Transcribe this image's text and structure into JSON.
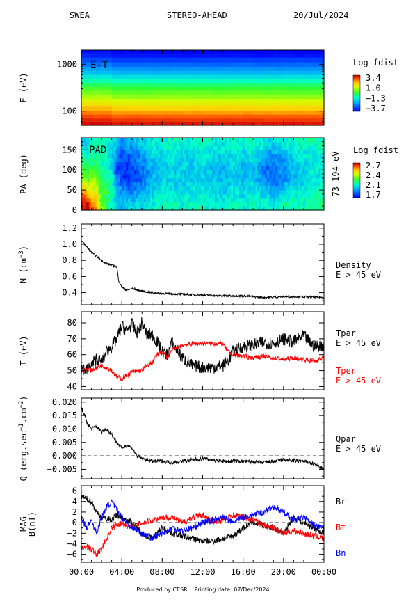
{
  "header": {
    "instrument": "SWEA",
    "spacecraft": "STEREO-AHEAD",
    "date": "20/Jul/2024"
  },
  "footer": {
    "produced_by": "Produced by CESR.",
    "printing_date": "Printing date: 07/Dec/2024"
  },
  "colors": {
    "black": "#000000",
    "red": "#ff0000",
    "blue": "#0000ff"
  },
  "chart_data": [
    {
      "id": "et",
      "type": "heatmap",
      "panel_label": "E-T",
      "ylabel": "E (eV)",
      "yscale": "log",
      "ylim": [
        50,
        2000
      ],
      "yticks": [
        "1000",
        "100"
      ],
      "colorbar": {
        "title": "Log fdist",
        "ticks": [
          "3.4",
          "1.0",
          "−1.3",
          "−3.7"
        ],
        "range": [
          -3.7,
          3.4
        ]
      },
      "energy_levels": [
        55,
        65,
        78,
        95,
        115,
        140,
        170,
        205,
        250,
        305,
        370,
        450,
        550,
        670,
        820,
        1000,
        1250,
        1600,
        1900
      ],
      "log_fdist_profile": [
        3.2,
        2.9,
        2.6,
        2.2,
        1.8,
        1.4,
        1.0,
        0.6,
        0.3,
        0.0,
        -0.4,
        -0.9,
        -1.4,
        -1.9,
        -2.3,
        -2.7,
        -3.1,
        -3.5,
        -3.7
      ]
    },
    {
      "id": "pad",
      "type": "heatmap",
      "panel_label": "PAD",
      "ylabel": "PA (deg)",
      "right_label": "73-194 eV",
      "ylim": [
        0,
        180
      ],
      "yticks": [
        "150",
        "100",
        "50",
        "0"
      ],
      "colorbar": {
        "title": "Log fdist",
        "ticks": [
          "2.7",
          "2.4",
          "2.1",
          "1.7"
        ],
        "range": [
          1.7,
          2.7
        ]
      },
      "time_hours": [
        0,
        0.5,
        1,
        1.5,
        2,
        2.5,
        3,
        3.5,
        4,
        5,
        6,
        7,
        8,
        9,
        10,
        11,
        12,
        13,
        14,
        15,
        16,
        17,
        18,
        19,
        20,
        21,
        22,
        23,
        24
      ],
      "pitch_angle_bins": [
        15,
        45,
        75,
        105,
        135,
        165
      ],
      "log_fdist": [
        [
          2.7,
          2.5,
          2.3,
          2.2,
          2.1,
          2.0
        ],
        [
          2.7,
          2.5,
          2.3,
          2.2,
          2.1,
          2.0
        ],
        [
          2.6,
          2.4,
          2.3,
          2.2,
          2.1,
          2.1
        ],
        [
          2.5,
          2.4,
          2.3,
          2.2,
          2.1,
          2.1
        ],
        [
          2.3,
          2.2,
          2.2,
          2.1,
          2.1,
          2.1
        ],
        [
          2.2,
          2.2,
          2.1,
          2.1,
          2.1,
          2.1
        ],
        [
          2.1,
          2.1,
          2.1,
          2.0,
          2.0,
          2.0
        ],
        [
          2.0,
          2.0,
          1.9,
          1.8,
          1.9,
          2.0
        ],
        [
          2.0,
          1.9,
          1.8,
          1.75,
          1.8,
          1.9
        ],
        [
          2.0,
          1.9,
          1.8,
          1.8,
          1.85,
          1.95
        ],
        [
          2.0,
          1.95,
          1.85,
          1.85,
          1.9,
          2.0
        ],
        [
          2.05,
          2.0,
          1.95,
          1.95,
          2.0,
          2.05
        ],
        [
          2.1,
          2.05,
          2.0,
          2.0,
          2.0,
          2.05
        ],
        [
          2.1,
          2.05,
          2.0,
          2.0,
          2.05,
          2.1
        ],
        [
          2.05,
          2.0,
          2.0,
          2.0,
          2.0,
          2.05
        ],
        [
          2.1,
          2.05,
          2.0,
          2.0,
          2.0,
          2.05
        ],
        [
          2.1,
          2.05,
          2.0,
          2.0,
          2.05,
          2.1
        ],
        [
          2.05,
          2.0,
          2.0,
          1.95,
          2.0,
          2.05
        ],
        [
          2.05,
          2.0,
          1.95,
          1.95,
          2.0,
          2.05
        ],
        [
          2.1,
          2.05,
          2.0,
          2.0,
          2.05,
          2.1
        ],
        [
          2.05,
          2.0,
          1.95,
          1.95,
          2.0,
          2.05
        ],
        [
          2.1,
          2.05,
          2.0,
          2.0,
          2.05,
          2.1
        ],
        [
          2.05,
          2.0,
          1.9,
          1.85,
          1.95,
          2.05
        ],
        [
          2.05,
          1.95,
          1.85,
          1.85,
          1.9,
          2.0
        ],
        [
          2.1,
          2.0,
          1.9,
          1.9,
          1.95,
          2.05
        ],
        [
          2.1,
          2.05,
          1.95,
          1.95,
          2.0,
          2.05
        ],
        [
          2.1,
          2.05,
          2.0,
          2.0,
          2.05,
          2.1
        ],
        [
          2.15,
          2.1,
          2.05,
          2.05,
          2.05,
          2.1
        ],
        [
          2.15,
          2.1,
          2.05,
          2.05,
          2.05,
          2.1
        ]
      ]
    },
    {
      "id": "density",
      "type": "line",
      "ylabel": "N (cm^-3)",
      "ylim": [
        0.25,
        1.25
      ],
      "yticks": [
        "1.2",
        "1.0",
        "0.8",
        "0.6",
        "0.4"
      ],
      "series": [
        {
          "name": "Density",
          "subtitle": "E > 45 eV",
          "color": "#000000",
          "x": [
            0,
            0.5,
            1,
            1.5,
            2,
            2.5,
            3,
            3.5,
            3.7,
            4,
            4.5,
            5,
            6,
            7,
            8,
            10,
            12,
            14,
            16,
            18,
            20,
            22,
            24
          ],
          "y": [
            1.05,
            0.97,
            0.9,
            0.85,
            0.8,
            0.76,
            0.74,
            0.72,
            0.55,
            0.47,
            0.43,
            0.45,
            0.42,
            0.4,
            0.39,
            0.38,
            0.37,
            0.36,
            0.36,
            0.34,
            0.35,
            0.35,
            0.34
          ]
        }
      ]
    },
    {
      "id": "temperature",
      "type": "line",
      "ylabel": "T (eV)",
      "ylim": [
        38,
        87
      ],
      "yticks": [
        "80",
        "70",
        "60",
        "50",
        "40"
      ],
      "series": [
        {
          "name": "Tpar",
          "subtitle": "E > 45 eV",
          "color": "#000000",
          "x": [
            0,
            0.5,
            1,
            1.5,
            2,
            2.5,
            3,
            3.5,
            4,
            4.5,
            5,
            5.5,
            6,
            6.5,
            7,
            7.5,
            8,
            8.5,
            9,
            9.5,
            10,
            11,
            12,
            13,
            14,
            14.5,
            15,
            16,
            17,
            18,
            19,
            20,
            21,
            22,
            23,
            24
          ],
          "y": [
            52,
            50,
            53,
            58,
            55,
            62,
            65,
            70,
            78,
            75,
            79,
            74,
            80,
            72,
            73,
            68,
            62,
            60,
            68,
            62,
            58,
            53,
            52,
            52,
            53,
            56,
            62,
            65,
            66,
            68,
            67,
            70,
            68,
            72,
            65,
            66
          ]
        },
        {
          "name": "Tper",
          "subtitle": "E > 45 eV",
          "color": "#ff0000",
          "x": [
            0,
            0.5,
            1,
            1.5,
            2,
            2.5,
            3,
            3.5,
            4,
            4.5,
            5,
            6,
            6.5,
            7,
            7.5,
            8,
            8.5,
            9,
            10,
            11,
            12,
            13,
            14,
            14.5,
            15,
            16,
            17,
            18,
            19,
            20,
            21,
            22,
            23,
            24
          ],
          "y": [
            50,
            51,
            50,
            52,
            53,
            52,
            50,
            46,
            45,
            47,
            49,
            50,
            53,
            55,
            60,
            62,
            58,
            63,
            66,
            67,
            67,
            67,
            67,
            62,
            60,
            59,
            58,
            59,
            58,
            57,
            58,
            57,
            56,
            58
          ]
        }
      ]
    },
    {
      "id": "heatflux",
      "type": "line",
      "ylabel": "Q (erg.sec^-1.cm^-2)",
      "ylim": [
        -0.0085,
        0.0215
      ],
      "yticks": [
        "0.020",
        "0.015",
        "0.010",
        "0.005",
        "0.000",
        "−0.005"
      ],
      "reference_line": 0.0,
      "series": [
        {
          "name": "Qpar",
          "subtitle": "E > 45 eV",
          "color": "#000000",
          "x": [
            0,
            0.3,
            0.6,
            1,
            1.5,
            2,
            2.5,
            3,
            3.5,
            4,
            4.5,
            5,
            5.5,
            6,
            7,
            8,
            9,
            10,
            12,
            14,
            16,
            18,
            20,
            22,
            23,
            24
          ],
          "y": [
            0.018,
            0.015,
            0.012,
            0.01,
            0.011,
            0.009,
            0.01,
            0.008,
            0.005,
            0.003,
            0.004,
            0.003,
            0.0,
            -0.001,
            -0.002,
            -0.002,
            -0.0025,
            -0.002,
            -0.001,
            -0.002,
            -0.002,
            -0.0025,
            -0.0015,
            -0.002,
            -0.003,
            -0.005
          ]
        }
      ]
    },
    {
      "id": "mag",
      "type": "line",
      "ylabel": "MAG B(nT)",
      "ylim": [
        -7.5,
        7
      ],
      "yticks": [
        "6",
        "4",
        "2",
        "0",
        "−2",
        "−4",
        "−6"
      ],
      "reference_line": 0,
      "series": [
        {
          "name": "Br",
          "color": "#000000",
          "x": [
            0,
            0.5,
            1,
            1.5,
            2,
            3,
            3.5,
            4,
            5,
            6,
            7,
            8,
            9,
            10,
            11,
            12,
            13,
            14,
            15,
            16,
            17,
            18,
            19,
            20,
            21,
            22,
            23,
            24
          ],
          "y": [
            5,
            4.5,
            4,
            2,
            1,
            0.5,
            1.5,
            1,
            0,
            -2,
            -3,
            -1,
            -2,
            -2.5,
            -3,
            -3.5,
            -3.5,
            -3,
            -2.5,
            -1,
            0,
            -0.5,
            -1,
            -2,
            1,
            0,
            -1,
            -2
          ]
        },
        {
          "name": "Bt",
          "color": "#ff0000",
          "x": [
            0,
            0.5,
            1,
            1.5,
            2,
            2.5,
            3,
            4,
            5,
            6,
            7,
            8,
            9,
            10,
            11,
            12,
            13,
            14,
            15,
            16,
            17,
            18,
            19,
            20,
            21,
            22,
            23,
            24
          ],
          "y": [
            -5,
            -4.5,
            -5,
            -6,
            -5,
            -3,
            -1,
            0,
            -1,
            0,
            0.5,
            1,
            1,
            0,
            1,
            1.5,
            0,
            0.5,
            1.5,
            1,
            0.5,
            -0.5,
            -1,
            -2,
            -1.5,
            -2,
            -2.5,
            -3
          ]
        },
        {
          "name": "Bn",
          "color": "#0000ff",
          "x": [
            0,
            0.5,
            1,
            1.5,
            2,
            2.5,
            3,
            4,
            5,
            6,
            7,
            8,
            9,
            10,
            11,
            12,
            13,
            14,
            15,
            16,
            17,
            18,
            19,
            20,
            21,
            22,
            23,
            24
          ],
          "y": [
            1,
            -1,
            0.5,
            -2,
            1,
            3,
            4,
            1,
            -1,
            -2,
            -3,
            -2,
            -1,
            -1.5,
            -1,
            0,
            0.5,
            1,
            0,
            1,
            1.5,
            2,
            3,
            2,
            0.5,
            1,
            -0.5,
            -1
          ]
        }
      ]
    }
  ],
  "x_axis": {
    "ticks": [
      "00:00",
      "04:00",
      "08:00",
      "12:00",
      "16:00",
      "20:00",
      "00:00"
    ],
    "xlim": [
      0,
      24
    ]
  }
}
